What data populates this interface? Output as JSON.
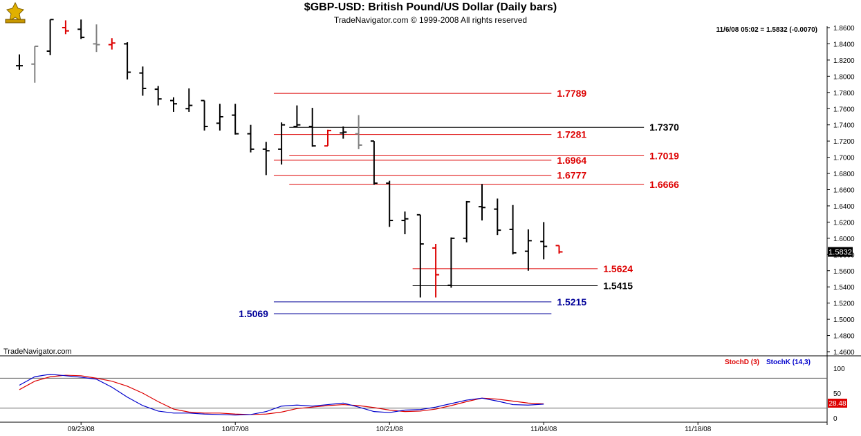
{
  "header": {
    "title": "$GBP-USD:  British Pound/US Dollar  (Daily bars)",
    "subtitle": "TradeNavigator.com © 1999-2008 All rights reserved"
  },
  "price_panel": {
    "last_quote": "11/6/08 05:02 = 1.5832 (-0.0070)",
    "last_price_label": "1.5832",
    "watermark": "TradeNavigator.com"
  },
  "stoch_panel": {
    "legend_d": "StochD (3)",
    "legend_k": "StochK (14,3)",
    "current_label": "28.48",
    "y_ticks": [
      "100",
      "50",
      "0"
    ]
  },
  "colors": {
    "bar_up": "#000000",
    "bar_gray": "#808080",
    "bar_red": "#dd0000",
    "fib_red": "#dd0000",
    "level_black": "#000000",
    "level_blue": "#000099",
    "stoch_d": "#dd0000",
    "stoch_k": "#0000cc"
  },
  "chart_data": [
    {
      "type": "ohlc",
      "ylim": [
        1.45,
        1.865
      ],
      "y_ticks": [
        "1.8600",
        "1.8400",
        "1.8200",
        "1.8000",
        "1.7800",
        "1.7600",
        "1.7400",
        "1.7200",
        "1.7000",
        "1.6800",
        "1.6600",
        "1.6400",
        "1.6200",
        "1.6000",
        "1.5800",
        "1.5600",
        "1.5400",
        "1.5200",
        "1.5000",
        "1.4800",
        "1.4600"
      ],
      "x_ticks": [
        "09/23/08",
        "10/07/08",
        "10/21/08",
        "11/04/08",
        "11/18/08"
      ],
      "x_tick_index": [
        4,
        14,
        24,
        34,
        44
      ],
      "bars": [
        {
          "i": 0,
          "o": 1.813,
          "h": 1.827,
          "l": 1.808,
          "c": 1.813,
          "col": "black"
        },
        {
          "i": 1,
          "o": 1.815,
          "h": 1.837,
          "l": 1.792,
          "c": 1.837,
          "col": "gray"
        },
        {
          "i": 2,
          "o": 1.831,
          "h": 1.87,
          "l": 1.826,
          "c": 1.87,
          "col": "black"
        },
        {
          "i": 3,
          "o": 1.86,
          "h": 1.869,
          "l": 1.852,
          "c": 1.856,
          "col": "red"
        },
        {
          "i": 4,
          "o": 1.858,
          "h": 1.87,
          "l": 1.846,
          "c": 1.848,
          "col": "black"
        },
        {
          "i": 5,
          "o": 1.84,
          "h": 1.864,
          "l": 1.83,
          "c": 1.839,
          "col": "gray"
        },
        {
          "i": 6,
          "o": 1.839,
          "h": 1.847,
          "l": 1.833,
          "c": 1.841,
          "col": "red"
        },
        {
          "i": 7,
          "o": 1.84,
          "h": 1.842,
          "l": 1.796,
          "c": 1.805,
          "col": "black"
        },
        {
          "i": 8,
          "o": 1.804,
          "h": 1.812,
          "l": 1.776,
          "c": 1.785,
          "col": "black"
        },
        {
          "i": 9,
          "o": 1.784,
          "h": 1.788,
          "l": 1.764,
          "c": 1.772,
          "col": "black"
        },
        {
          "i": 10,
          "o": 1.77,
          "h": 1.774,
          "l": 1.756,
          "c": 1.766,
          "col": "black"
        },
        {
          "i": 11,
          "o": 1.76,
          "h": 1.785,
          "l": 1.756,
          "c": 1.764,
          "col": "black"
        },
        {
          "i": 12,
          "o": 1.77,
          "h": 1.77,
          "l": 1.733,
          "c": 1.738,
          "col": "black"
        },
        {
          "i": 13,
          "o": 1.742,
          "h": 1.766,
          "l": 1.733,
          "c": 1.75,
          "col": "black"
        },
        {
          "i": 14,
          "o": 1.752,
          "h": 1.766,
          "l": 1.728,
          "c": 1.729,
          "col": "black"
        },
        {
          "i": 15,
          "o": 1.729,
          "h": 1.74,
          "l": 1.706,
          "c": 1.71,
          "col": "black"
        },
        {
          "i": 16,
          "o": 1.71,
          "h": 1.719,
          "l": 1.678,
          "c": 1.708,
          "col": "black"
        },
        {
          "i": 17,
          "o": 1.71,
          "h": 1.743,
          "l": 1.691,
          "c": 1.74,
          "col": "black"
        },
        {
          "i": 18,
          "o": 1.738,
          "h": 1.764,
          "l": 1.737,
          "c": 1.74,
          "col": "black"
        },
        {
          "i": 19,
          "o": 1.738,
          "h": 1.761,
          "l": 1.713,
          "c": 1.714,
          "col": "black"
        },
        {
          "i": 20,
          "o": 1.714,
          "h": 1.734,
          "l": 1.714,
          "c": 1.733,
          "col": "red"
        },
        {
          "i": 21,
          "o": 1.73,
          "h": 1.738,
          "l": 1.723,
          "c": 1.731,
          "col": "black"
        },
        {
          "i": 22,
          "o": 1.729,
          "h": 1.752,
          "l": 1.71,
          "c": 1.715,
          "col": "gray"
        },
        {
          "i": 23,
          "o": 1.72,
          "h": 1.72,
          "l": 1.666,
          "c": 1.668,
          "col": "black"
        },
        {
          "i": 24,
          "o": 1.668,
          "h": 1.671,
          "l": 1.614,
          "c": 1.622,
          "col": "black"
        },
        {
          "i": 25,
          "o": 1.622,
          "h": 1.633,
          "l": 1.605,
          "c": 1.624,
          "col": "black"
        },
        {
          "i": 26,
          "o": 1.629,
          "h": 1.629,
          "l": 1.527,
          "c": 1.593,
          "col": "black"
        },
        {
          "i": 27,
          "o": 1.588,
          "h": 1.593,
          "l": 1.527,
          "c": 1.555,
          "col": "red"
        },
        {
          "i": 28,
          "o": 1.542,
          "h": 1.601,
          "l": 1.539,
          "c": 1.6,
          "col": "black"
        },
        {
          "i": 29,
          "o": 1.6,
          "h": 1.646,
          "l": 1.595,
          "c": 1.645,
          "col": "black"
        },
        {
          "i": 30,
          "o": 1.639,
          "h": 1.667,
          "l": 1.622,
          "c": 1.638,
          "col": "black"
        },
        {
          "i": 31,
          "o": 1.636,
          "h": 1.649,
          "l": 1.604,
          "c": 1.61,
          "col": "black"
        },
        {
          "i": 32,
          "o": 1.611,
          "h": 1.641,
          "l": 1.58,
          "c": 1.582,
          "col": "black"
        },
        {
          "i": 33,
          "o": 1.584,
          "h": 1.611,
          "l": 1.56,
          "c": 1.597,
          "col": "black"
        },
        {
          "i": 34,
          "o": 1.596,
          "h": 1.62,
          "l": 1.574,
          "c": 1.59,
          "col": "black"
        },
        {
          "i": 35,
          "o": 1.591,
          "h": 1.591,
          "l": 1.581,
          "c": 1.5832,
          "col": "red"
        }
      ],
      "levels": [
        {
          "value": 1.7789,
          "label": "1.7789",
          "color": "red",
          "from": 16.5,
          "to": 34.5,
          "label_side": "right"
        },
        {
          "value": 1.737,
          "label": "1.7370",
          "color": "black",
          "from": 17.5,
          "to": 40.5,
          "label_side": "right"
        },
        {
          "value": 1.7281,
          "label": "1.7281",
          "color": "red",
          "from": 16.5,
          "to": 34.5,
          "label_side": "right"
        },
        {
          "value": 1.7019,
          "label": "1.7019",
          "color": "red",
          "from": 17.5,
          "to": 40.5,
          "label_side": "right"
        },
        {
          "value": 1.6964,
          "label": "1.6964",
          "color": "red",
          "from": 16.5,
          "to": 34.5,
          "label_side": "right"
        },
        {
          "value": 1.6777,
          "label": "1.6777",
          "color": "red",
          "from": 16.5,
          "to": 34.5,
          "label_side": "right"
        },
        {
          "value": 1.6666,
          "label": "1.6666",
          "color": "red",
          "from": 17.5,
          "to": 40.5,
          "label_side": "right"
        },
        {
          "value": 1.5624,
          "label": "1.5624",
          "color": "red",
          "from": 25.5,
          "to": 37.5,
          "label_side": "right"
        },
        {
          "value": 1.5415,
          "label": "1.5415",
          "color": "black",
          "from": 25.5,
          "to": 37.5,
          "label_side": "right"
        },
        {
          "value": 1.5215,
          "label": "1.5215",
          "color": "blue",
          "from": 16.5,
          "to": 34.5,
          "label_side": "right"
        },
        {
          "value": 1.5069,
          "label": "1.5069",
          "color": "blue",
          "from": 16.5,
          "to": 34.5,
          "label_side": "left"
        }
      ]
    },
    {
      "type": "line",
      "title": "",
      "ylim": [
        0,
        100
      ],
      "hlines": [
        80,
        20
      ],
      "series": [
        {
          "name": "StochD (3)",
          "color": "red",
          "x": [
            0,
            1,
            2,
            3,
            4,
            5,
            6,
            7,
            8,
            9,
            10,
            11,
            12,
            13,
            14,
            15,
            16,
            17,
            18,
            19,
            20,
            21,
            22,
            23,
            24,
            25,
            26,
            27,
            28,
            29,
            30,
            31,
            32,
            33,
            34
          ],
          "values": [
            57,
            74,
            83,
            86,
            85,
            80,
            74,
            64,
            50,
            33,
            18,
            12,
            10,
            10,
            8,
            7,
            8,
            12,
            19,
            22,
            25,
            27,
            25,
            21,
            16,
            13,
            14,
            18,
            25,
            33,
            40,
            38,
            34,
            30,
            28.48
          ]
        },
        {
          "name": "StochK (14,3)",
          "color": "blue",
          "x": [
            0,
            1,
            2,
            3,
            4,
            5,
            6,
            7,
            8,
            9,
            10,
            11,
            12,
            13,
            14,
            15,
            16,
            17,
            18,
            19,
            20,
            21,
            22,
            23,
            24,
            25,
            26,
            27,
            28,
            29,
            30,
            31,
            32,
            33,
            34
          ],
          "values": [
            66,
            83,
            88,
            85,
            82,
            78,
            62,
            42,
            25,
            14,
            10,
            10,
            8,
            7,
            6,
            7,
            13,
            24,
            26,
            24,
            27,
            30,
            22,
            13,
            11,
            16,
            17,
            22,
            29,
            36,
            40,
            34,
            27,
            26,
            28
          ]
        }
      ]
    }
  ]
}
